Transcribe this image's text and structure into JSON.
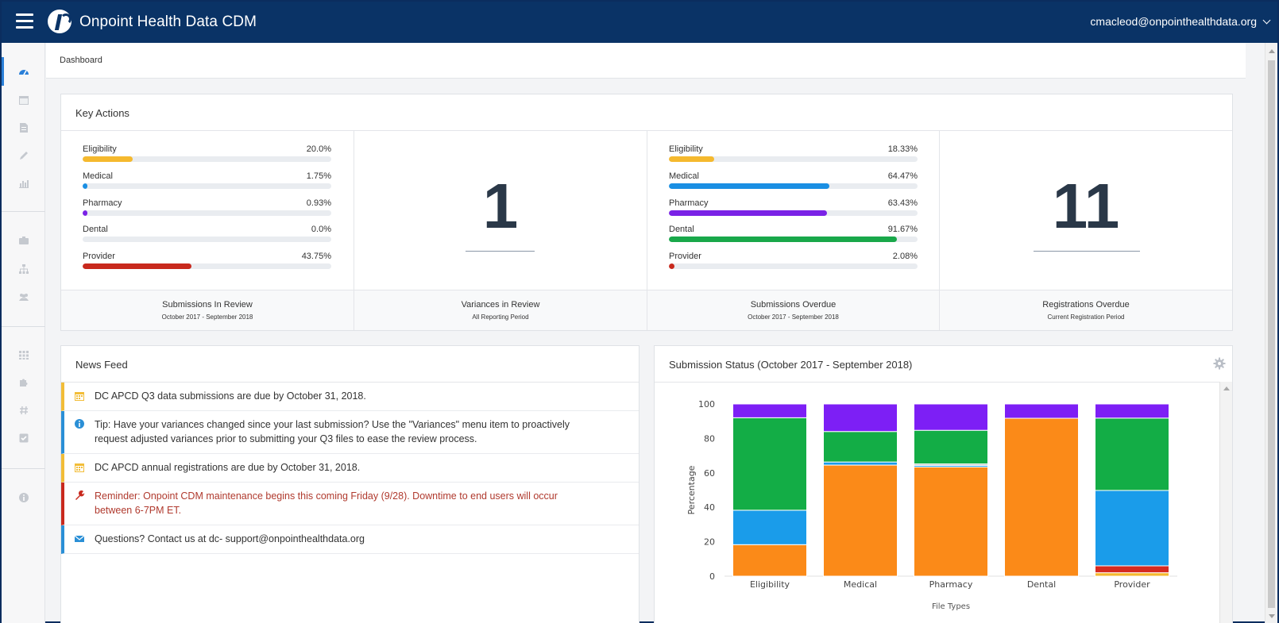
{
  "header": {
    "title": "Onpoint Health Data  CDM",
    "user": "cmacleod@onpointhealthdata.org"
  },
  "breadcrumb": "Dashboard",
  "sidebar": {
    "icons": [
      "dashboard-icon",
      "calendar-icon",
      "document-icon",
      "pencil-icon",
      "bar-chart-icon",
      "briefcase-icon",
      "org-chart-icon",
      "users-icon",
      "grid-icon",
      "puzzle-icon",
      "hash-icon",
      "checkbox-icon",
      "info-icon"
    ]
  },
  "key_actions": {
    "title": "Key Actions",
    "review_progress": [
      {
        "label": "Eligibility",
        "value": "20.0%",
        "percent": 20.0,
        "color": "#f5b92e"
      },
      {
        "label": "Medical",
        "value": "1.75%",
        "percent": 1.75,
        "color": "#1a8fe3"
      },
      {
        "label": "Pharmacy",
        "value": "0.93%",
        "percent": 0.93,
        "color": "#7a22e6"
      },
      {
        "label": "Dental",
        "value": "0.0%",
        "percent": 0.0,
        "color": "#19a84a"
      },
      {
        "label": "Provider",
        "value": "43.75%",
        "percent": 43.75,
        "color": "#c8291d"
      }
    ],
    "overdue_progress": [
      {
        "label": "Eligibility",
        "value": "18.33%",
        "percent": 18.33,
        "color": "#f5b92e"
      },
      {
        "label": "Medical",
        "value": "64.47%",
        "percent": 64.47,
        "color": "#1a8fe3"
      },
      {
        "label": "Pharmacy",
        "value": "63.43%",
        "percent": 63.43,
        "color": "#7a22e6"
      },
      {
        "label": "Dental",
        "value": "91.67%",
        "percent": 91.67,
        "color": "#19a84a"
      },
      {
        "label": "Provider",
        "value": "2.08%",
        "percent": 2.08,
        "color": "#c8291d"
      }
    ],
    "variances_count": "1",
    "registrations_count": "11",
    "footers": [
      {
        "main": "Submissions In Review",
        "sub": "October 2017 - September 2018"
      },
      {
        "main": "Variances in Review",
        "sub": "All Reporting Period"
      },
      {
        "main": "Submissions Overdue",
        "sub": "October 2017 - September 2018"
      },
      {
        "main": "Registrations Overdue",
        "sub": "Current Registration Period"
      }
    ]
  },
  "news_feed": {
    "title": "News Feed",
    "items": [
      {
        "icon": "calendar-icon",
        "type": "deadline",
        "text": "DC APCD Q3 data submissions are due by October 31, 2018.",
        "border": "#f2bd38",
        "text_color": "#333333"
      },
      {
        "icon": "info-icon",
        "type": "tip",
        "text": "Tip: Have your variances changed since your last submission? Use the \"Variances\" menu item to proactively request adjusted variances prior to submitting your Q3 files to ease the review process.",
        "border": "#2a8fd6",
        "text_color": "#333333"
      },
      {
        "icon": "calendar-icon",
        "type": "deadline",
        "text": "DC APCD annual registrations are due by October 31, 2018.",
        "border": "#f2bd38",
        "text_color": "#333333"
      },
      {
        "icon": "wrench-icon",
        "type": "alert",
        "text": "Reminder: Onpoint CDM maintenance begins this coming Friday (9/28). Downtime to end users will occur between 6-7PM ET.",
        "border": "#c8291d",
        "text_color": "#b03a2e"
      },
      {
        "icon": "envelope-icon",
        "type": "contact",
        "text": "Questions? Contact us at  dc- support@onpointhealthdata.org",
        "border": "#2a8fd6",
        "text_color": "#333333"
      }
    ]
  },
  "submission_status": {
    "title": "Submission Status (October 2017 - September 2018)"
  },
  "chart_data": {
    "type": "bar",
    "stacked": true,
    "categories": [
      "Eligibility",
      "Medical",
      "Pharmacy",
      "Dental",
      "Provider"
    ],
    "xlabel": "File Types",
    "ylabel": "Percentage",
    "ylim": [
      0,
      100
    ],
    "yticks": [
      0,
      20,
      40,
      60,
      80,
      100
    ],
    "grid": false,
    "series": [
      {
        "color": "#f5b92e",
        "values": [
          0,
          0,
          0,
          0,
          2
        ]
      },
      {
        "color": "#fb8a18",
        "values": [
          18.3,
          64.5,
          63.4,
          91.7,
          0
        ]
      },
      {
        "color": "#d62a20",
        "values": [
          0,
          0,
          0,
          0,
          4
        ]
      },
      {
        "color": "#1a9cea",
        "values": [
          20,
          1.8,
          0.9,
          0,
          43.8
        ]
      },
      {
        "color": "#c7c7c7",
        "values": [
          0,
          0,
          0.9,
          0,
          0
        ]
      },
      {
        "color": "#13ad46",
        "values": [
          53.7,
          17.7,
          19.5,
          0,
          42
        ]
      },
      {
        "color": "#7d1ff5",
        "values": [
          8,
          16,
          15.3,
          8.3,
          8.2
        ]
      }
    ]
  }
}
